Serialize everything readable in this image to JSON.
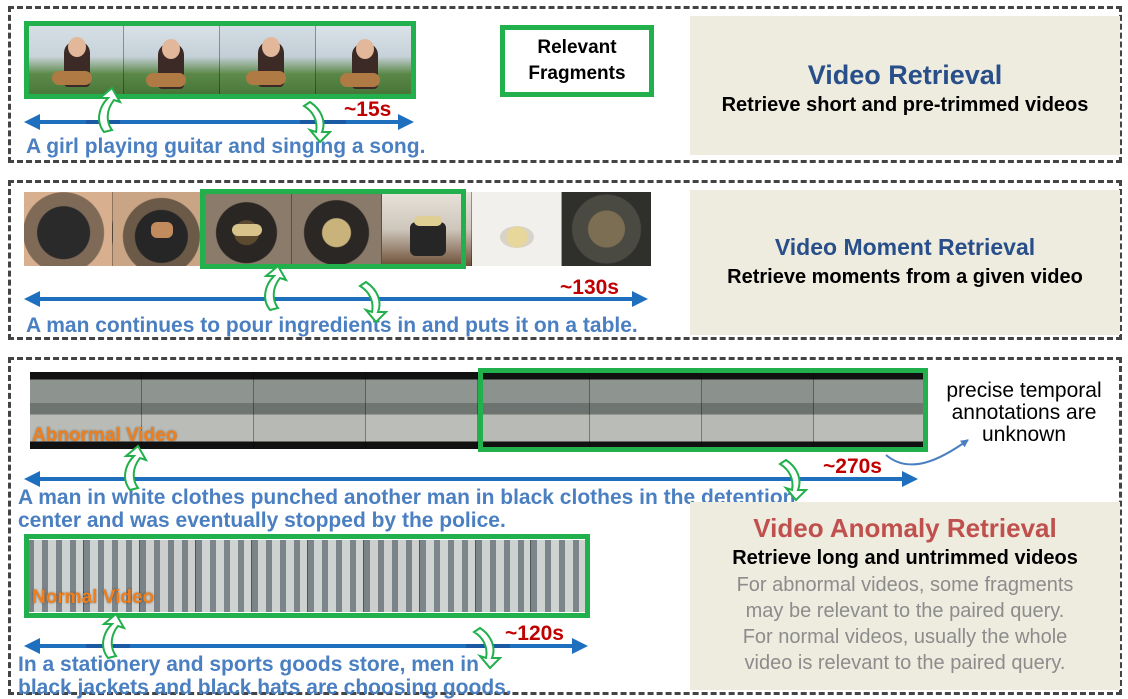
{
  "panels": {
    "video_retrieval": {
      "title": "Video Retrieval",
      "subtitle": "Retrieve short and pre-trimmed videos",
      "caption": "A girl playing guitar and singing a song.",
      "duration": "~15s",
      "legend": "Relevant\nFragments"
    },
    "moment_retrieval": {
      "title": "Video Moment Retrieval",
      "subtitle": "Retrieve moments from a given video",
      "caption": "A man continues to pour ingredients in and puts it on a table.",
      "duration": "~130s"
    },
    "anomaly_retrieval": {
      "title": "Video Anomaly Retrieval",
      "subtitle": "Retrieve long and untrimmed videos",
      "note_lines": [
        "For abnormal videos, some fragments",
        "may be relevant to the paired query.",
        "For normal videos, usually the whole",
        "video is relevant to the paired query."
      ],
      "abnormal": {
        "label": "Abnormal Video",
        "caption_lines": [
          "A man in white clothes punched another man in black clothes in the detention",
          "center and was eventually stopped by the police."
        ],
        "duration": "~270s",
        "annotation_lines": [
          "precise temporal",
          "annotations are",
          "unknown"
        ]
      },
      "normal": {
        "label": "Normal Video",
        "caption_lines": [
          "In a stationery and sports goods store, men in",
          "black jackets and black hats are choosing goods."
        ],
        "duration": "~120s"
      }
    }
  },
  "colors": {
    "green": "#21b04b",
    "blue_arrow": "#1f6fbf",
    "caption": "#4a7fc1",
    "duration": "#c00000",
    "info_bg": "#eeebdf"
  }
}
